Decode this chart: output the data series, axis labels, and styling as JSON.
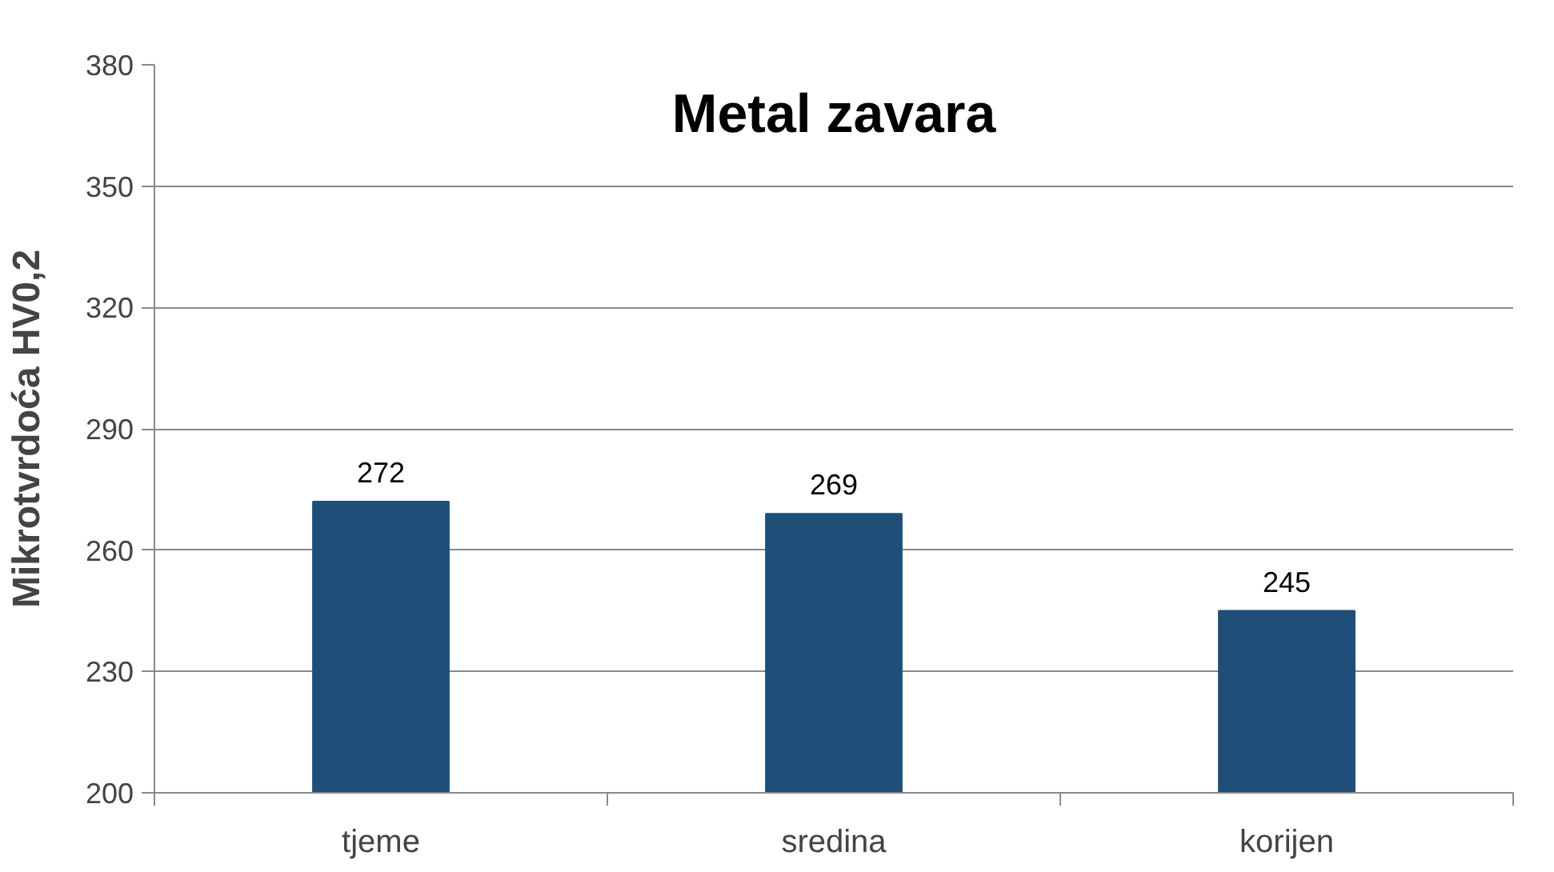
{
  "chart_data": {
    "type": "bar",
    "title": "Metal zavara",
    "ylabel": "Mikrotvrdoća HV0,2",
    "categories": [
      "tjeme",
      "sredina",
      "korijen"
    ],
    "values": [
      272,
      269,
      245
    ],
    "color": "#1f4e79",
    "ylim": [
      200,
      380
    ],
    "yticks": [
      200,
      230,
      260,
      290,
      320,
      350,
      380
    ],
    "grid": "y",
    "data_labels": true
  }
}
